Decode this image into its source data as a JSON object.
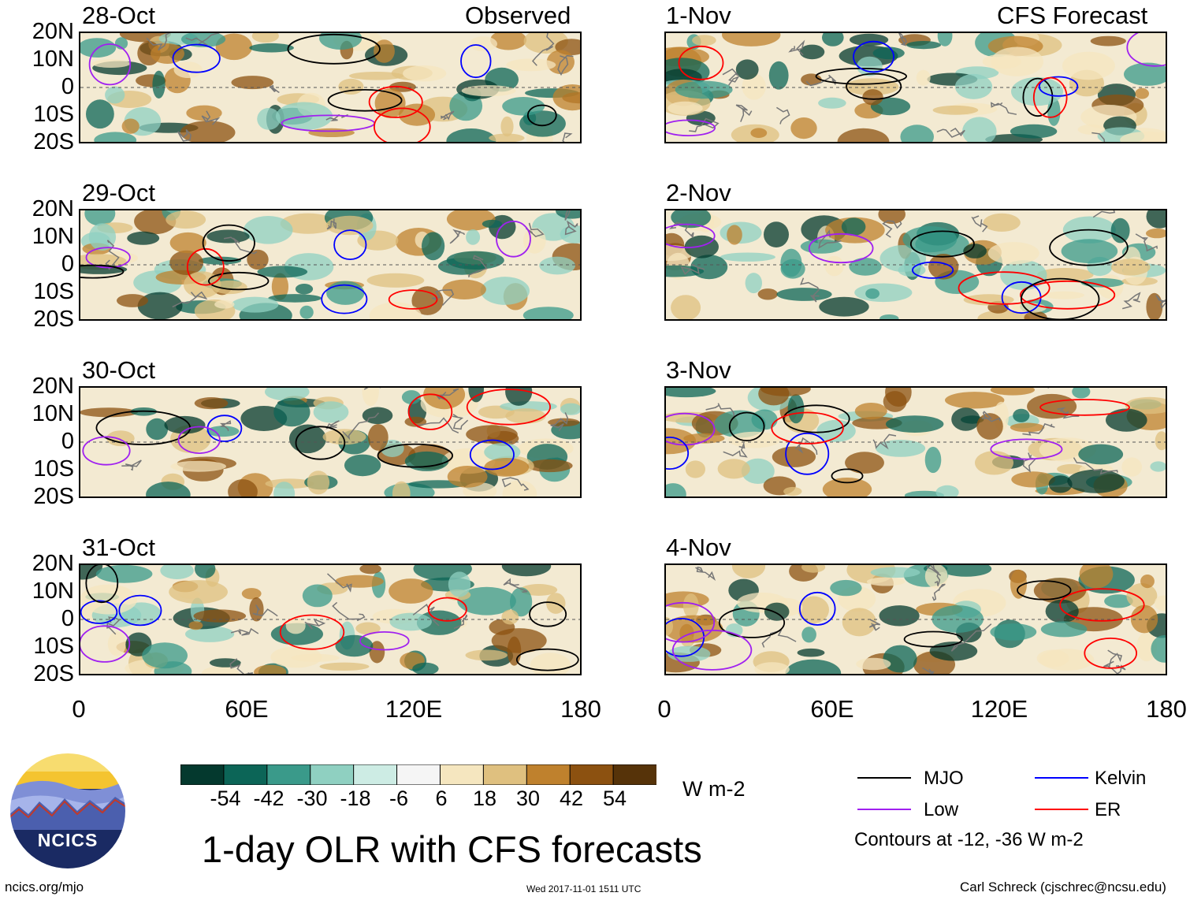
{
  "panels": {
    "observed_header": "Observed",
    "forecast_header": "CFS Forecast",
    "observed_dates": [
      "28-Oct",
      "29-Oct",
      "30-Oct",
      "31-Oct"
    ],
    "forecast_dates": [
      "1-Nov",
      "2-Nov",
      "3-Nov",
      "4-Nov"
    ]
  },
  "axes": {
    "lat_ticks": [
      "20N",
      "10N",
      "0",
      "10S",
      "20S"
    ],
    "lon_ticks": [
      "0",
      "60E",
      "120E",
      "180"
    ]
  },
  "colorbar": {
    "tick_labels": [
      "-54",
      "-42",
      "-30",
      "-18",
      "-6",
      "6",
      "18",
      "30",
      "42",
      "54"
    ],
    "units": "W m-2",
    "colors": [
      "#04392e",
      "#0c6557",
      "#3a9a8a",
      "#8fd0c1",
      "#cdece4",
      "#f5f5f5",
      "#f5e6bf",
      "#dfc07f",
      "#bf812d",
      "#8c5110",
      "#563309"
    ]
  },
  "title": "1-day OLR with CFS forecasts",
  "legend": {
    "items": [
      {
        "label": "MJO",
        "color": "#000000"
      },
      {
        "label": "Kelvin",
        "color": "#0000ff"
      },
      {
        "label": "Low",
        "color": "#a020f0"
      },
      {
        "label": "ER",
        "color": "#ff0000"
      }
    ],
    "note": "Contours at -12, -36 W m-2"
  },
  "logo": {
    "text": "NCICS"
  },
  "footer": {
    "url": "ncics.org/mjo",
    "timestamp": "Wed 2017-11-01 1511 UTC",
    "credit": "Carl Schreck (cjschrec@ncsu.edu)"
  }
}
